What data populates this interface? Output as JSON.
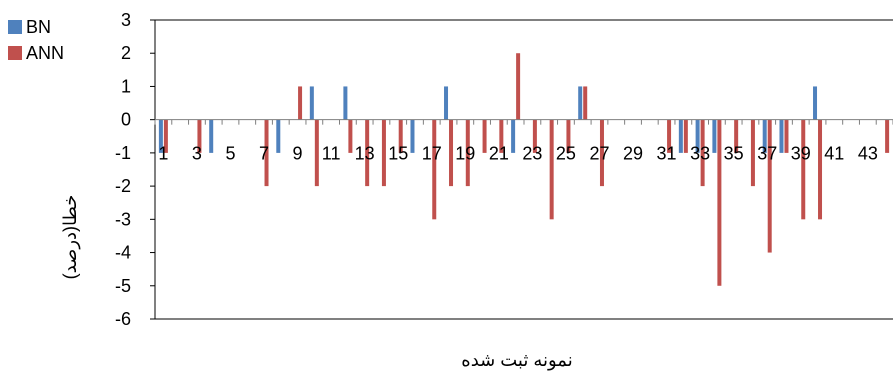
{
  "chart_data": {
    "type": "bar",
    "title": "",
    "xlabel": "نمونه ثبت شده",
    "ylabel": "خطا(درصد)",
    "ylim": [
      -6,
      3
    ],
    "yticks": [
      3,
      2,
      1,
      0,
      -1,
      -2,
      -3,
      -4,
      -5,
      -6
    ],
    "grid": false,
    "legend_position": "top-left",
    "categories": [
      "1",
      "2",
      "3",
      "4",
      "5",
      "6",
      "7",
      "8",
      "9",
      "10",
      "11",
      "12",
      "13",
      "14",
      "15",
      "16",
      "17",
      "18",
      "19",
      "20",
      "21",
      "22",
      "23",
      "24",
      "25",
      "26",
      "27",
      "28",
      "29",
      "30",
      "31",
      "32",
      "33",
      "34",
      "35",
      "36",
      "37",
      "38",
      "39",
      "40",
      "41",
      "42",
      "43",
      "44"
    ],
    "xtick_labels": [
      "1",
      "3",
      "5",
      "7",
      "9",
      "11",
      "13",
      "15",
      "17",
      "19",
      "21",
      "23",
      "25",
      "27",
      "29",
      "31",
      "33",
      "35",
      "37",
      "39",
      "41",
      "43"
    ],
    "series": [
      {
        "name": "BN",
        "color": "#4f81bd",
        "values": [
          -1,
          0,
          0,
          -1,
          0,
          0,
          0,
          -1,
          0,
          1,
          0,
          1,
          0,
          0,
          0,
          -1,
          0,
          1,
          0,
          0,
          0,
          -1,
          0,
          0,
          0,
          1,
          0,
          0,
          0,
          0,
          0,
          -1,
          -1,
          -1,
          0,
          0,
          -1,
          -1,
          0,
          1,
          0,
          0,
          0,
          0
        ]
      },
      {
        "name": "ANN",
        "color": "#c0504d",
        "values": [
          -1,
          0,
          -1,
          0,
          0,
          0,
          -2,
          0,
          1,
          -2,
          0,
          -1,
          -2,
          -2,
          -1,
          0,
          -3,
          -2,
          -2,
          -1,
          -1,
          2,
          -1,
          -3,
          -1,
          1,
          -2,
          0,
          0,
          0,
          -1,
          -1,
          -2,
          -5,
          -1,
          -2,
          -4,
          -1,
          -3,
          -3,
          0,
          0,
          0,
          -1
        ]
      }
    ]
  }
}
